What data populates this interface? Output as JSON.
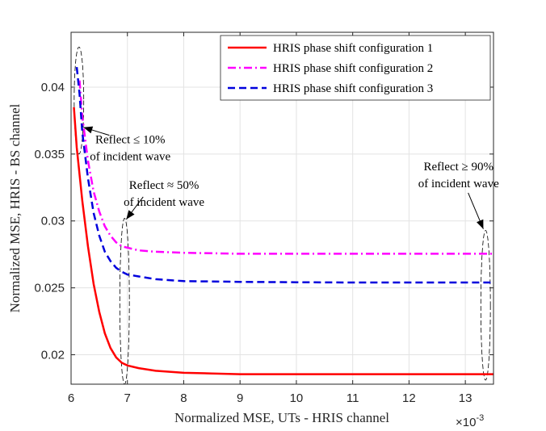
{
  "chart_data": {
    "type": "line",
    "title": "",
    "xlabel": "Normalized MSE, UTs - HRIS channel",
    "ylabel": "Normalized MSE, HRIS - BS channel",
    "x_exponent_label": "×10",
    "x_exponent_power": "-3",
    "xlim": [
      6,
      13.5
    ],
    "ylim": [
      0.0178,
      0.0441
    ],
    "xticks": [
      6,
      7,
      8,
      9,
      10,
      11,
      12,
      13
    ],
    "xtick_labels": [
      "6",
      "7",
      "8",
      "9",
      "10",
      "11",
      "12",
      "13"
    ],
    "yticks": [
      0.02,
      0.025,
      0.03,
      0.035,
      0.04
    ],
    "ytick_labels": [
      "0.02",
      "0.025",
      "0.03",
      "0.035",
      "0.04"
    ],
    "grid": true,
    "legend_position": "top-right",
    "series": [
      {
        "name": "HRIS phase shift configuration 1",
        "color": "#ff0000",
        "style": "solid",
        "x": [
          6.05,
          6.1,
          6.2,
          6.3,
          6.4,
          6.5,
          6.6,
          6.7,
          6.8,
          6.9,
          7.0,
          7.2,
          7.5,
          8.0,
          8.5,
          9.0,
          10.0,
          11.0,
          12.0,
          13.0,
          13.5
        ],
        "y": [
          0.0385,
          0.0355,
          0.0315,
          0.0281,
          0.0253,
          0.0232,
          0.0216,
          0.0205,
          0.0198,
          0.0194,
          0.0192,
          0.019,
          0.0188,
          0.01865,
          0.0186,
          0.01855,
          0.01855,
          0.01855,
          0.01855,
          0.01855,
          0.01855
        ]
      },
      {
        "name": "HRIS phase shift configuration 2",
        "color": "#ff00ff",
        "style": "dashdot",
        "x": [
          6.15,
          6.2,
          6.3,
          6.4,
          6.5,
          6.6,
          6.7,
          6.8,
          6.9,
          7.0,
          7.2,
          7.5,
          8.0,
          9.0,
          10.0,
          11.0,
          12.0,
          13.0,
          13.5
        ],
        "y": [
          0.0405,
          0.0378,
          0.0345,
          0.0322,
          0.0307,
          0.0296,
          0.0289,
          0.0284,
          0.0281,
          0.028,
          0.0278,
          0.0277,
          0.02762,
          0.02755,
          0.02755,
          0.02755,
          0.02755,
          0.02755,
          0.02755
        ]
      },
      {
        "name": "HRIS phase shift configuration 3",
        "color": "#0000dd",
        "style": "dashed",
        "x": [
          6.1,
          6.15,
          6.2,
          6.3,
          6.4,
          6.5,
          6.6,
          6.7,
          6.8,
          6.9,
          7.0,
          7.2,
          7.5,
          8.0,
          9.0,
          10.0,
          11.0,
          12.0,
          13.0,
          13.5
        ],
        "y": [
          0.0415,
          0.0395,
          0.0366,
          0.0332,
          0.0306,
          0.0289,
          0.0277,
          0.027,
          0.0265,
          0.0262,
          0.026,
          0.02585,
          0.02565,
          0.0255,
          0.02545,
          0.02542,
          0.0254,
          0.0254,
          0.0254,
          0.0254
        ]
      }
    ],
    "annotations": [
      {
        "lines": [
          "Reflect ≤ 10%",
          "of incident wave"
        ],
        "text_anchor_data": [
          7.05,
          0.0358
        ],
        "arrow_from_data": [
          6.68,
          0.0364
        ],
        "arrow_to_data": [
          6.22,
          0.037
        ],
        "ellipse_center_data": [
          6.14,
          0.039
        ],
        "ellipse_radius_data": [
          0.085,
          0.004
        ]
      },
      {
        "lines": [
          "Reflect ≈ 50%",
          "of incident wave"
        ],
        "text_anchor_data": [
          7.65,
          0.0324
        ],
        "arrow_from_data": [
          7.28,
          0.0318
        ],
        "arrow_to_data": [
          6.98,
          0.03012
        ],
        "ellipse_center_data": [
          6.95,
          0.024
        ],
        "ellipse_radius_data": [
          0.085,
          0.0062
        ]
      },
      {
        "lines": [
          "Reflect ≥ 90%",
          "of incident wave"
        ],
        "text_anchor_data": [
          12.88,
          0.0338
        ],
        "arrow_from_data": [
          13.05,
          0.0321
        ],
        "arrow_to_data": [
          13.32,
          0.0294
        ],
        "ellipse_center_data": [
          13.36,
          0.0237
        ],
        "ellipse_radius_data": [
          0.085,
          0.0056
        ]
      }
    ]
  }
}
